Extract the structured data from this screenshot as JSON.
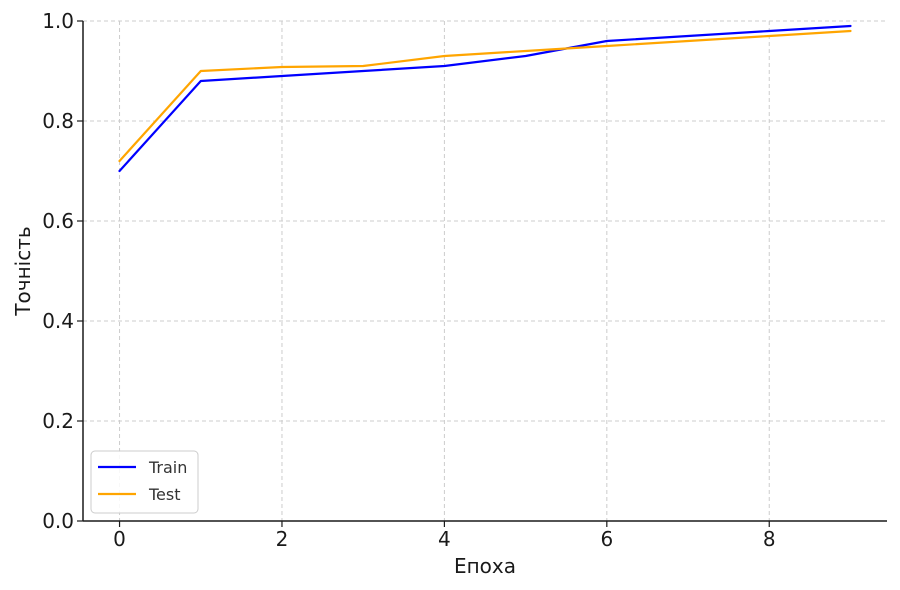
{
  "chart_data": {
    "type": "line",
    "xlabel": "Епоха",
    "ylabel": "Точність",
    "xlim": [
      -0.45,
      9.45
    ],
    "ylim": [
      0.0,
      1.0
    ],
    "xticks": [
      0,
      2,
      4,
      6,
      8
    ],
    "xtick_labels": [
      "0",
      "2",
      "4",
      "6",
      "8"
    ],
    "yticks": [
      0.0,
      0.2,
      0.4,
      0.6,
      0.8,
      1.0
    ],
    "ytick_labels": [
      "0.0",
      "0.2",
      "0.4",
      "0.6",
      "0.8",
      "1.0"
    ],
    "grid": true,
    "legend_position": "lower-left",
    "x": [
      0,
      1,
      2,
      3,
      4,
      5,
      6,
      7,
      8,
      9
    ],
    "series": [
      {
        "name": "Train",
        "color": "#0000ff",
        "values": [
          0.7,
          0.88,
          0.89,
          0.9,
          0.91,
          0.93,
          0.96,
          0.97,
          0.98,
          0.99
        ]
      },
      {
        "name": "Test",
        "color": "#ffa500",
        "values": [
          0.72,
          0.9,
          0.908,
          0.91,
          0.93,
          0.94,
          0.95,
          0.96,
          0.97,
          0.98
        ]
      }
    ]
  }
}
